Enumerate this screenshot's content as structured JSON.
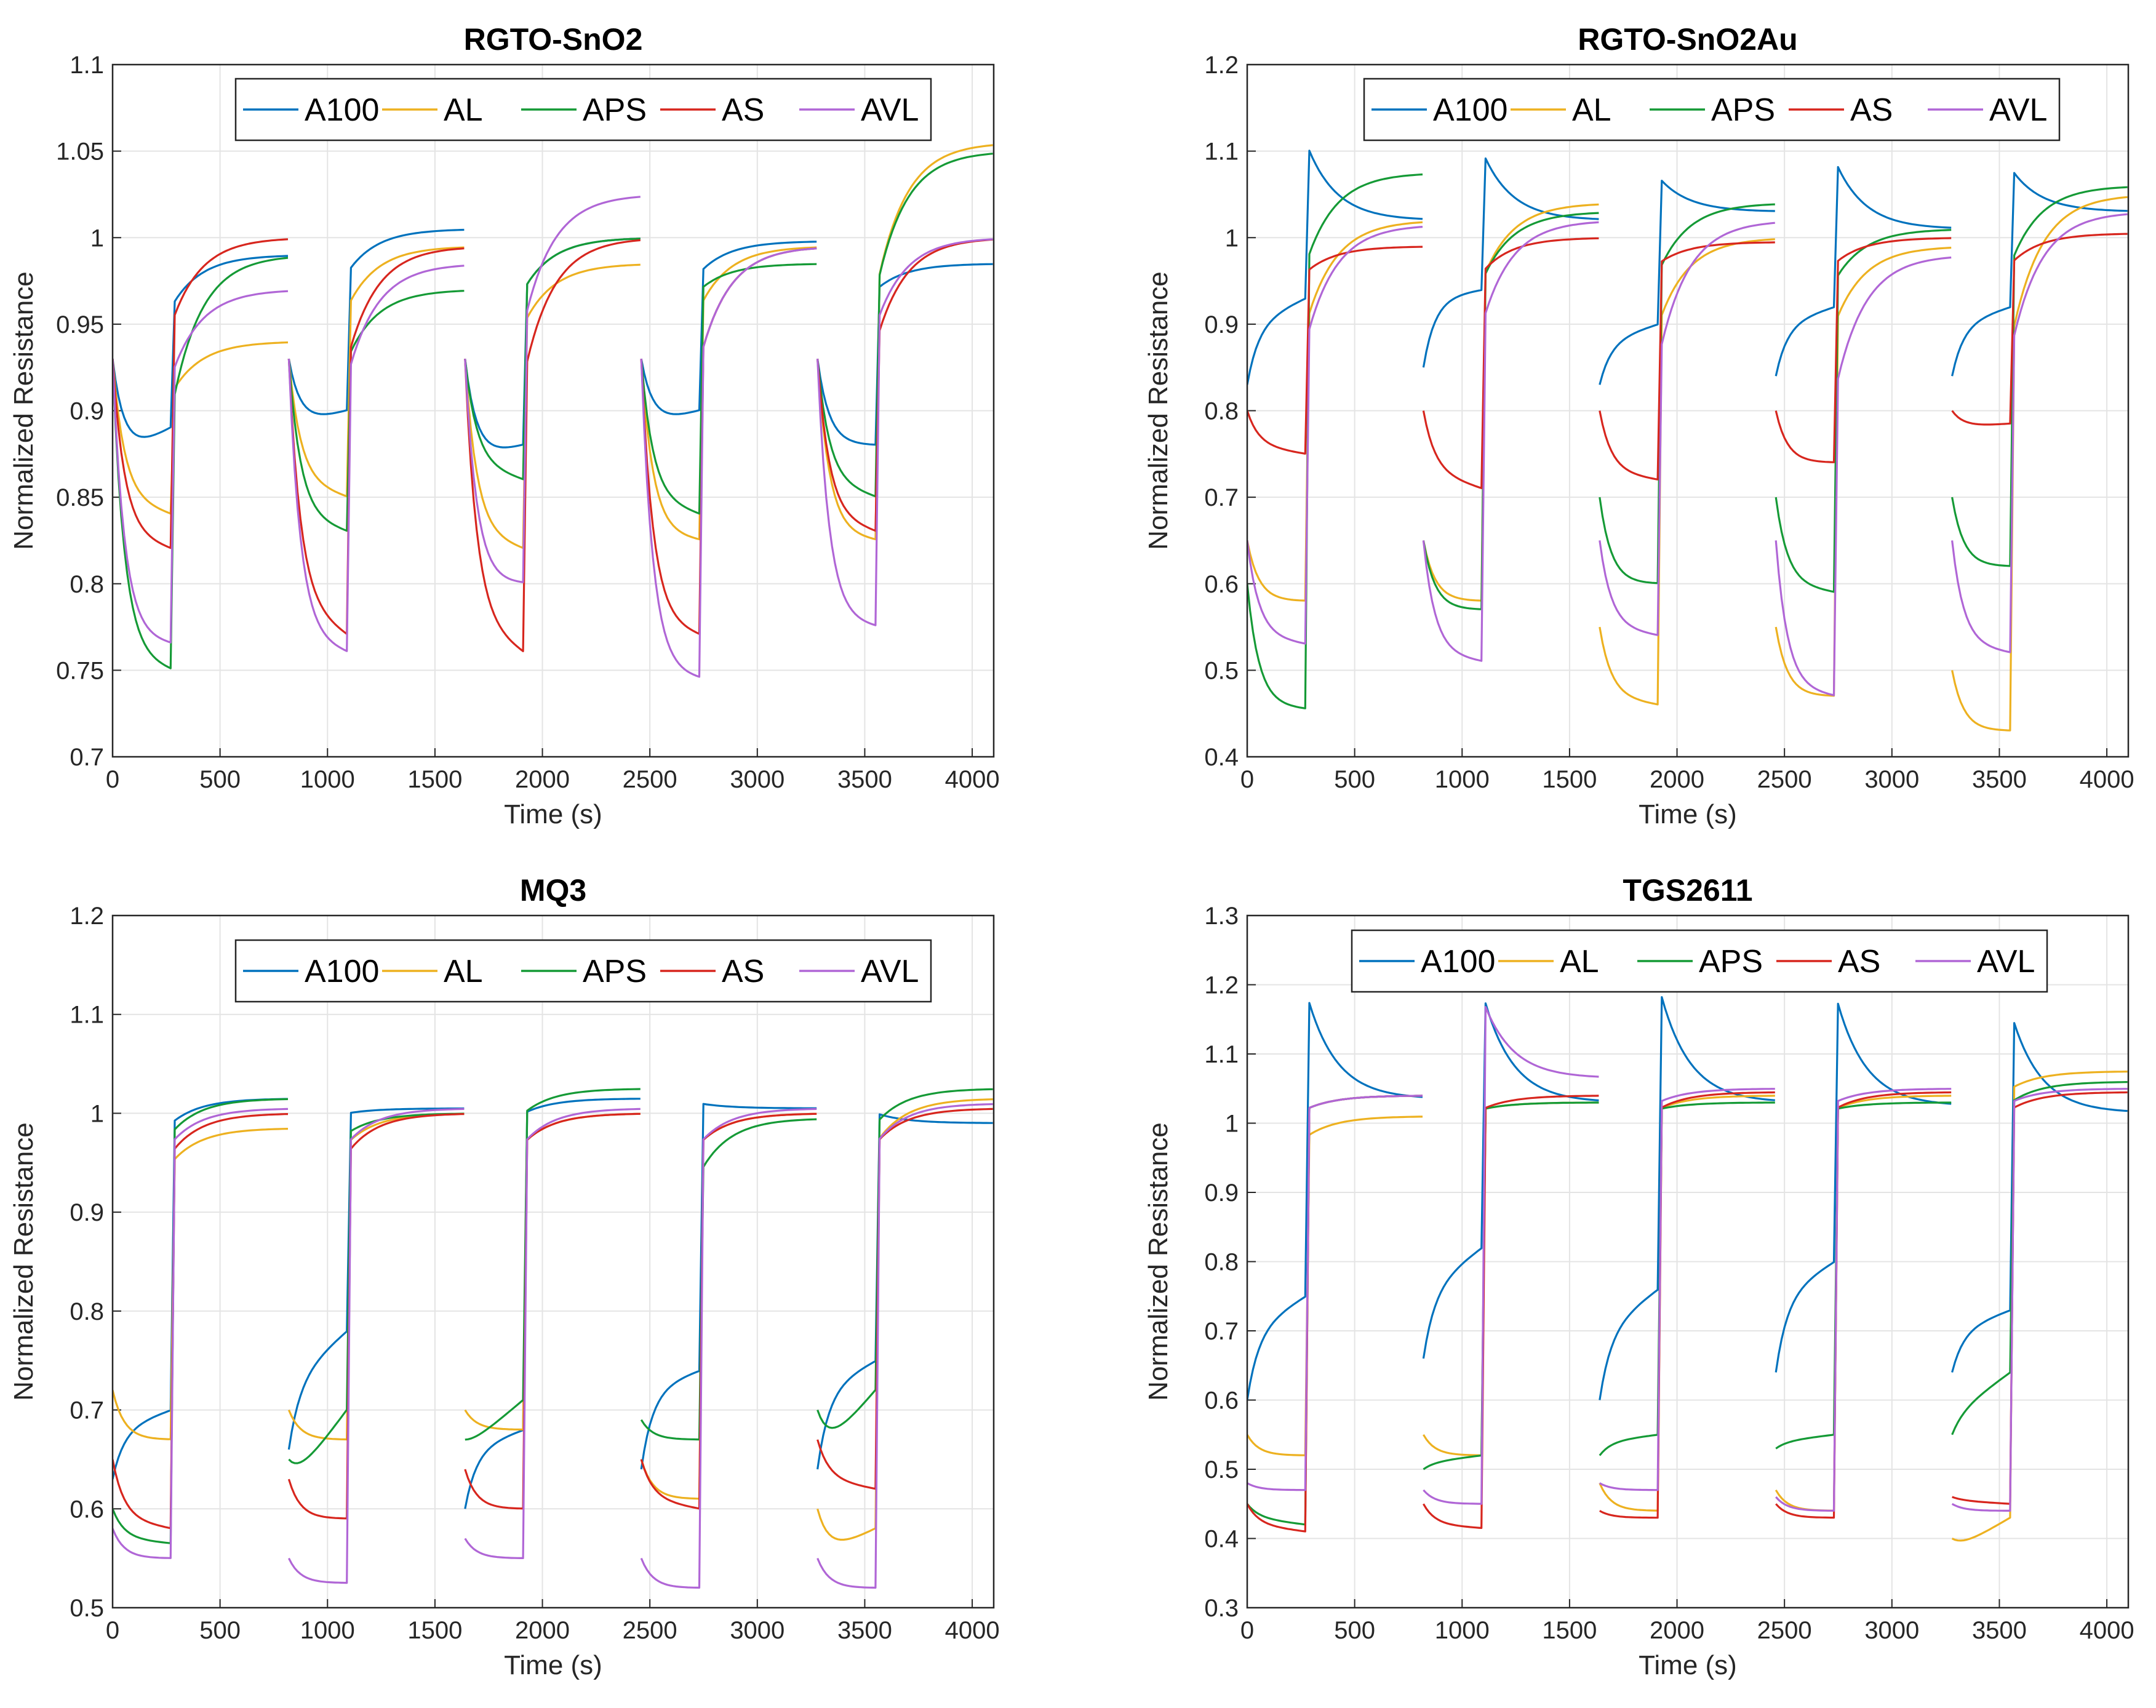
{
  "colors": {
    "A100": "#0072BD",
    "AL": "#EDB120",
    "APS": "#159A36",
    "AS": "#D7261E",
    "AVL": "#B066D6"
  },
  "legend": [
    "A100",
    "AL",
    "APS",
    "AS",
    "AVL"
  ],
  "chart_data": [
    {
      "type": "line",
      "title": "RGTO-SnO2",
      "xlabel": "Time (s)",
      "ylabel": "Normalized Resistance",
      "xlim": [
        0,
        4100
      ],
      "ylim": [
        0.7,
        1.1
      ],
      "xticks": [
        "0",
        "500",
        "1000",
        "1500",
        "2000",
        "2500",
        "3000",
        "3500",
        "4000"
      ],
      "yticks": [
        "0.7",
        "0.75",
        "0.8",
        "0.85",
        "0.9",
        "0.95",
        "1",
        "1.05",
        "1.1"
      ],
      "grid": true,
      "legend_position": "top",
      "cycle_starts": [
        0,
        820,
        1640,
        2460,
        3280
      ],
      "expo_seconds": 270,
      "series": [
        {
          "name": "A100",
          "cycles": [
            [
              0.93,
              0.87,
              0.89,
              0.96,
              0.99
            ],
            [
              0.93,
              0.89,
              0.9,
              0.98,
              1.005
            ],
            [
              0.93,
              0.87,
              0.88,
              0.97,
              1.0
            ],
            [
              0.93,
              0.89,
              0.9,
              0.98,
              0.998
            ],
            [
              0.93,
              0.88,
              0.88,
              0.97,
              0.985
            ]
          ]
        },
        {
          "name": "AL",
          "cycles": [
            [
              0.93,
              0.85,
              0.84,
              0.91,
              0.94
            ],
            [
              0.93,
              0.86,
              0.85,
              0.96,
              0.995
            ],
            [
              0.93,
              0.83,
              0.82,
              0.95,
              0.985
            ],
            [
              0.93,
              0.83,
              0.825,
              0.96,
              0.995
            ],
            [
              0.93,
              0.83,
              0.825,
              0.97,
              1.055
            ]
          ]
        },
        {
          "name": "APS",
          "cycles": [
            [
              0.93,
              0.76,
              0.75,
              0.9,
              0.99
            ],
            [
              0.93,
              0.84,
              0.83,
              0.93,
              0.97
            ],
            [
              0.93,
              0.87,
              0.86,
              0.97,
              1.0
            ],
            [
              0.93,
              0.85,
              0.84,
              0.97,
              0.985
            ],
            [
              0.93,
              0.86,
              0.85,
              0.97,
              1.05
            ]
          ]
        },
        {
          "name": "AS",
          "cycles": [
            [
              0.93,
              0.83,
              0.82,
              0.95,
              1.0
            ],
            [
              0.93,
              0.79,
              0.77,
              0.93,
              0.995
            ],
            [
              0.93,
              0.78,
              0.76,
              0.92,
              1.0
            ],
            [
              0.93,
              0.78,
              0.77,
              0.93,
              0.995
            ],
            [
              0.93,
              0.84,
              0.83,
              0.94,
              1.0
            ]
          ]
        },
        {
          "name": "AVL",
          "cycles": [
            [
              0.93,
              0.77,
              0.765,
              0.92,
              0.97
            ],
            [
              0.93,
              0.77,
              0.76,
              0.92,
              0.985
            ],
            [
              0.93,
              0.8,
              0.8,
              0.95,
              1.025
            ],
            [
              0.93,
              0.75,
              0.745,
              0.93,
              0.995
            ],
            [
              0.93,
              0.78,
              0.775,
              0.95,
              1.0
            ]
          ]
        }
      ]
    },
    {
      "type": "line",
      "title": "RGTO-SnO2Au",
      "xlabel": "Time (s)",
      "ylabel": "Normalized Resistance",
      "xlim": [
        0,
        4100
      ],
      "ylim": [
        0.4,
        1.2
      ],
      "xticks": [
        "0",
        "500",
        "1000",
        "1500",
        "2000",
        "2500",
        "3000",
        "3500",
        "4000"
      ],
      "yticks": [
        "0.4",
        "0.5",
        "0.6",
        "0.7",
        "0.8",
        "0.9",
        "1",
        "1.1",
        "1.2"
      ],
      "grid": true,
      "legend_position": "top",
      "cycle_starts": [
        0,
        820,
        1640,
        2460,
        3280
      ],
      "expo_seconds": 270,
      "series": [
        {
          "name": "A100",
          "cycles": [
            [
              0.83,
              0.9,
              0.93,
              1.11,
              1.02
            ],
            [
              0.85,
              0.93,
              0.94,
              1.1,
              1.02
            ],
            [
              0.83,
              0.88,
              0.9,
              1.07,
              1.03
            ],
            [
              0.84,
              0.9,
              0.92,
              1.09,
              1.01
            ],
            [
              0.84,
              0.9,
              0.92,
              1.08,
              1.03
            ]
          ]
        },
        {
          "name": "AL",
          "cycles": [
            [
              0.65,
              0.58,
              0.58,
              0.9,
              1.02
            ],
            [
              0.65,
              0.58,
              0.58,
              0.95,
              1.04
            ],
            [
              0.55,
              0.47,
              0.46,
              0.9,
              1.0
            ],
            [
              0.55,
              0.47,
              0.47,
              0.9,
              0.99
            ],
            [
              0.5,
              0.43,
              0.43,
              0.88,
              1.05
            ]
          ]
        },
        {
          "name": "APS",
          "cycles": [
            [
              0.6,
              0.46,
              0.455,
              0.97,
              1.075
            ],
            [
              0.65,
              0.57,
              0.57,
              0.95,
              1.03
            ],
            [
              0.7,
              0.6,
              0.6,
              0.96,
              1.04
            ],
            [
              0.7,
              0.6,
              0.59,
              0.95,
              1.01
            ],
            [
              0.7,
              0.62,
              0.62,
              0.97,
              1.06
            ]
          ]
        },
        {
          "name": "AS",
          "cycles": [
            [
              0.8,
              0.76,
              0.75,
              0.96,
              0.99
            ],
            [
              0.8,
              0.73,
              0.71,
              0.96,
              1.0
            ],
            [
              0.8,
              0.73,
              0.72,
              0.97,
              0.995
            ],
            [
              0.8,
              0.74,
              0.74,
              0.97,
              1.0
            ],
            [
              0.8,
              0.78,
              0.785,
              0.97,
              1.005
            ]
          ]
        },
        {
          "name": "AVL",
          "cycles": [
            [
              0.65,
              0.54,
              0.53,
              0.88,
              1.015
            ],
            [
              0.65,
              0.52,
              0.51,
              0.9,
              1.02
            ],
            [
              0.65,
              0.55,
              0.54,
              0.86,
              1.02
            ],
            [
              0.65,
              0.48,
              0.47,
              0.82,
              0.98
            ],
            [
              0.65,
              0.53,
              0.52,
              0.87,
              1.03
            ]
          ]
        }
      ]
    },
    {
      "type": "line",
      "title": "MQ3",
      "xlabel": "Time (s)",
      "ylabel": "Normalized Resistance",
      "xlim": [
        0,
        4100
      ],
      "ylim": [
        0.5,
        1.2
      ],
      "xticks": [
        "0",
        "500",
        "1000",
        "1500",
        "2000",
        "2500",
        "3000",
        "3500",
        "4000"
      ],
      "yticks": [
        "0.5",
        "0.6",
        "0.7",
        "0.8",
        "0.9",
        "1",
        "1.1",
        "1.2"
      ],
      "grid": true,
      "legend_position": "top",
      "cycle_starts": [
        0,
        820,
        1640,
        2460,
        3280
      ],
      "expo_seconds": 270,
      "series": [
        {
          "name": "A100",
          "cycles": [
            [
              0.63,
              0.68,
              0.7,
              0.99,
              1.015
            ],
            [
              0.66,
              0.73,
              0.78,
              1.0,
              1.005
            ],
            [
              0.6,
              0.66,
              0.68,
              1.0,
              1.015
            ],
            [
              0.64,
              0.72,
              0.74,
              1.01,
              1.005
            ],
            [
              0.64,
              0.72,
              0.75,
              1.0,
              0.99
            ]
          ]
        },
        {
          "name": "AL",
          "cycles": [
            [
              0.72,
              0.67,
              0.67,
              0.95,
              0.985
            ],
            [
              0.7,
              0.67,
              0.67,
              0.97,
              1.0
            ],
            [
              0.7,
              0.68,
              0.68,
              0.97,
              1.0
            ],
            [
              0.65,
              0.61,
              0.61,
              0.97,
              1.0
            ],
            [
              0.6,
              0.55,
              0.58,
              0.97,
              1.015
            ]
          ]
        },
        {
          "name": "APS",
          "cycles": [
            [
              0.6,
              0.57,
              0.565,
              0.98,
              1.015
            ],
            [
              0.65,
              0.62,
              0.7,
              0.98,
              1.0
            ],
            [
              0.67,
              0.66,
              0.71,
              1.0,
              1.025
            ],
            [
              0.69,
              0.67,
              0.67,
              0.94,
              0.995
            ],
            [
              0.7,
              0.65,
              0.72,
              0.99,
              1.025
            ]
          ]
        },
        {
          "name": "AS",
          "cycles": [
            [
              0.65,
              0.59,
              0.58,
              0.96,
              1.0
            ],
            [
              0.63,
              0.59,
              0.59,
              0.96,
              1.0
            ],
            [
              0.64,
              0.6,
              0.6,
              0.97,
              1.0
            ],
            [
              0.65,
              0.61,
              0.6,
              0.97,
              1.0
            ],
            [
              0.67,
              0.63,
              0.62,
              0.97,
              1.005
            ]
          ]
        },
        {
          "name": "AVL",
          "cycles": [
            [
              0.58,
              0.55,
              0.55,
              0.97,
              1.005
            ],
            [
              0.55,
              0.525,
              0.525,
              0.97,
              1.005
            ],
            [
              0.57,
              0.55,
              0.55,
              0.97,
              1.005
            ],
            [
              0.55,
              0.52,
              0.52,
              0.97,
              1.005
            ],
            [
              0.55,
              0.52,
              0.52,
              0.97,
              1.01
            ]
          ]
        }
      ]
    },
    {
      "type": "line",
      "title": "TGS2611",
      "xlabel": "Time (s)",
      "ylabel": "Normalized Resistance",
      "xlim": [
        0,
        4100
      ],
      "ylim": [
        0.3,
        1.3
      ],
      "xticks": [
        "0",
        "500",
        "1000",
        "1500",
        "2000",
        "2500",
        "3000",
        "3500",
        "4000"
      ],
      "yticks": [
        "0.3",
        "0.4",
        "0.5",
        "0.6",
        "0.7",
        "0.8",
        "0.9",
        "1",
        "1.1",
        "1.2",
        "1.3"
      ],
      "grid": true,
      "legend_position": "top",
      "cycle_starts": [
        0,
        820,
        1640,
        2460,
        3280
      ],
      "expo_seconds": 270,
      "series": [
        {
          "name": "A100",
          "cycles": [
            [
              0.6,
              0.7,
              0.75,
              1.19,
              1.035
            ],
            [
              0.66,
              0.76,
              0.82,
              1.19,
              1.03
            ],
            [
              0.6,
              0.7,
              0.76,
              1.2,
              1.03
            ],
            [
              0.64,
              0.75,
              0.8,
              1.19,
              1.025
            ],
            [
              0.64,
              0.7,
              0.73,
              1.16,
              1.015
            ]
          ]
        },
        {
          "name": "AL",
          "cycles": [
            [
              0.55,
              0.52,
              0.52,
              0.98,
              1.01
            ],
            [
              0.55,
              0.52,
              0.52,
              1.02,
              1.03
            ],
            [
              0.48,
              0.44,
              0.44,
              1.02,
              1.04
            ],
            [
              0.47,
              0.44,
              0.44,
              1.02,
              1.04
            ],
            [
              0.4,
              0.38,
              0.43,
              1.05,
              1.075
            ]
          ]
        },
        {
          "name": "APS",
          "cycles": [
            [
              0.45,
              0.43,
              0.42,
              1.02,
              1.04
            ],
            [
              0.5,
              0.51,
              0.52,
              1.02,
              1.03
            ],
            [
              0.52,
              0.54,
              0.55,
              1.02,
              1.03
            ],
            [
              0.53,
              0.54,
              0.55,
              1.02,
              1.03
            ],
            [
              0.55,
              0.58,
              0.64,
              1.03,
              1.06
            ]
          ]
        },
        {
          "name": "AS",
          "cycles": [
            [
              0.45,
              0.42,
              0.41,
              1.02,
              1.04
            ],
            [
              0.45,
              0.42,
              0.415,
              1.02,
              1.04
            ],
            [
              0.44,
              0.43,
              0.43,
              1.02,
              1.045
            ],
            [
              0.45,
              0.43,
              0.43,
              1.02,
              1.045
            ],
            [
              0.46,
              0.455,
              0.45,
              1.02,
              1.045
            ]
          ]
        },
        {
          "name": "AVL",
          "cycles": [
            [
              0.48,
              0.47,
              0.47,
              1.02,
              1.04
            ],
            [
              0.47,
              0.45,
              0.45,
              1.18,
              1.065
            ],
            [
              0.48,
              0.47,
              0.47,
              1.03,
              1.05
            ],
            [
              0.46,
              0.44,
              0.44,
              1.03,
              1.05
            ],
            [
              0.45,
              0.44,
              0.44,
              1.03,
              1.05
            ]
          ]
        }
      ]
    }
  ]
}
